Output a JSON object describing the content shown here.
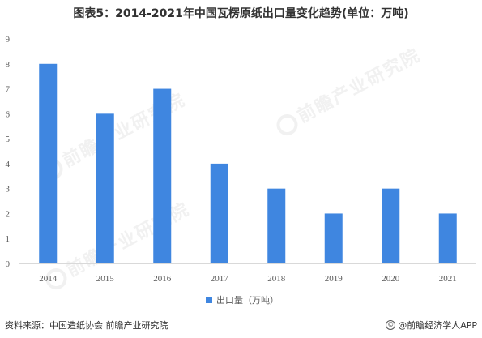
{
  "title": "图表5：2014-2021年中国瓦楞原纸出口量变化趋势(单位：万吨)",
  "chart_data": {
    "type": "bar",
    "categories": [
      "2014",
      "2015",
      "2016",
      "2017",
      "2018",
      "2019",
      "2020",
      "2021"
    ],
    "series": [
      {
        "name": "出口量（万吨）",
        "values": [
          8,
          6,
          7,
          4,
          3,
          2,
          3,
          2
        ]
      }
    ],
    "ylim": [
      0,
      9
    ],
    "yticks": [
      0,
      1,
      2,
      3,
      4,
      5,
      6,
      7,
      8,
      9
    ],
    "grid": false,
    "legend_position": "bottom",
    "bar_color": "#3f86e0"
  },
  "watermark": "前瞻产业研究院",
  "source": "资料来源：中国造纸协会 前瞻产业研究院",
  "credit": "@前瞻经济学人APP",
  "credit_icon": "copyright-icon"
}
